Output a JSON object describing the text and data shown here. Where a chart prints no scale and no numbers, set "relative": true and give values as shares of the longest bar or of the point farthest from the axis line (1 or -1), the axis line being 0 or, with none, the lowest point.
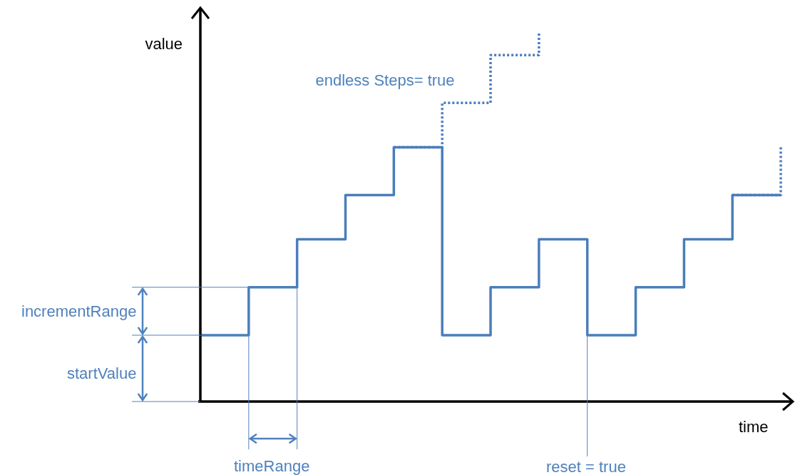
{
  "chart_data": {
    "type": "step",
    "relative": true,
    "xlabel": "time",
    "ylabel": "value",
    "legend": false,
    "marker": "none",
    "categories": [
      null,
      null,
      null,
      null,
      null,
      null,
      null,
      null,
      null,
      null,
      null,
      null,
      null
    ],
    "series": [
      {
        "color": "#4a7ebb",
        "values": [
          0.18,
          0.31,
          0.44,
          0.56,
          0.69,
          0.18,
          0.31,
          0.44,
          0.18,
          0.31,
          0.44,
          0.56,
          0.56
        ]
      },
      {
        "color": "#4a7ebb",
        "values": [
          null,
          null,
          null,
          null,
          0.69,
          0.81,
          0.94,
          1.0,
          null,
          null,
          null,
          null,
          null
        ],
        "line_style": "dotted"
      },
      {
        "color": "#4a7ebb",
        "values": [
          null,
          null,
          null,
          null,
          null,
          null,
          null,
          null,
          null,
          null,
          null,
          0.56,
          0.69
        ],
        "line_style": "dotted"
      }
    ],
    "annotations": [
      "endless Steps= true",
      "incrementRange",
      "startValue",
      "timeRange",
      "reset = true"
    ]
  }
}
